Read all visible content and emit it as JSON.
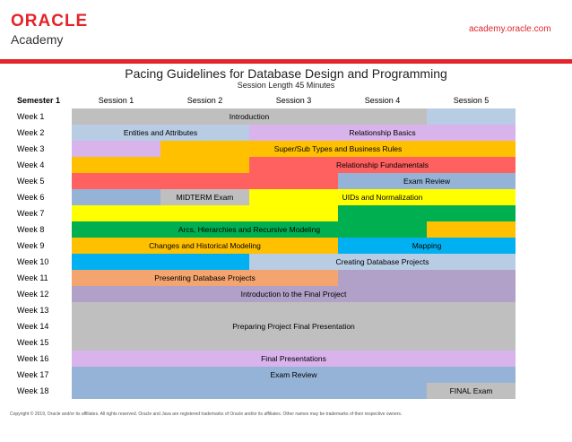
{
  "header": {
    "logo_brand": "ORACLE",
    "logo_sub": "Academy",
    "site": "academy.oracle.com",
    "accent_color": "#e3242b"
  },
  "title": "Pacing Guidelines for Database Design and Programming",
  "subtitle": "Session Length 45 Minutes",
  "semester_label": "Semester 1",
  "sessions": [
    "Session 1",
    "Session 2",
    "Session 3",
    "Session 4",
    "Session 5"
  ],
  "weeks": [
    "Week 1",
    "Week 2",
    "Week 3",
    "Week 4",
    "Week 5",
    "Week 6",
    "Week 7",
    "Week 8",
    "Week 9",
    "Week 10",
    "Week 11",
    "Week 12",
    "Week 13",
    "Week 14",
    "Week 15",
    "Week 16",
    "Week 17",
    "Week 18"
  ],
  "blocks": [
    {
      "row": 0,
      "col": 0,
      "rows": 1,
      "cols": 4,
      "color": "#bfbfbf"
    },
    {
      "row": 0,
      "col": 4,
      "rows": 1,
      "cols": 1,
      "color": "#b8cce4"
    },
    {
      "row": 1,
      "col": 0,
      "rows": 1,
      "cols": 2,
      "color": "#b8cce4"
    },
    {
      "row": 1,
      "col": 2,
      "rows": 1,
      "cols": 3,
      "color": "#d9b3ec"
    },
    {
      "row": 2,
      "col": 0,
      "rows": 1,
      "cols": 1,
      "color": "#d9b3ec"
    },
    {
      "row": 2,
      "col": 1,
      "rows": 1,
      "cols": 4,
      "color": "#ffc000"
    },
    {
      "row": 3,
      "col": 0,
      "rows": 1,
      "cols": 2,
      "color": "#ffc000"
    },
    {
      "row": 3,
      "col": 2,
      "rows": 1,
      "cols": 3,
      "color": "#ff6161"
    },
    {
      "row": 4,
      "col": 0,
      "rows": 1,
      "cols": 3,
      "color": "#ff6161"
    },
    {
      "row": 4,
      "col": 3,
      "rows": 1,
      "cols": 2,
      "color": "#95b3d7"
    },
    {
      "row": 5,
      "col": 0,
      "rows": 1,
      "cols": 1,
      "color": "#95b3d7"
    },
    {
      "row": 5,
      "col": 1,
      "rows": 1,
      "cols": 1,
      "color": "#bfbfbf"
    },
    {
      "row": 5,
      "col": 2,
      "rows": 2,
      "cols": 1,
      "color": "#ffff00"
    },
    {
      "row": 5,
      "col": 3,
      "rows": 1,
      "cols": 2,
      "color": "#ffff00"
    },
    {
      "row": 6,
      "col": 0,
      "rows": 1,
      "cols": 2,
      "color": "#ffff00"
    },
    {
      "row": 6,
      "col": 3,
      "rows": 1,
      "cols": 2,
      "color": "#00b050"
    },
    {
      "row": 7,
      "col": 0,
      "rows": 1,
      "cols": 4,
      "color": "#00b050"
    },
    {
      "row": 7,
      "col": 4,
      "rows": 1,
      "cols": 1,
      "color": "#ffc000"
    },
    {
      "row": 8,
      "col": 0,
      "rows": 1,
      "cols": 3,
      "color": "#ffc000"
    },
    {
      "row": 8,
      "col": 3,
      "rows": 1,
      "cols": 2,
      "color": "#00b0f0"
    },
    {
      "row": 9,
      "col": 0,
      "rows": 1,
      "cols": 2,
      "color": "#00b0f0"
    },
    {
      "row": 9,
      "col": 2,
      "rows": 1,
      "cols": 3,
      "color": "#b8cce4"
    },
    {
      "row": 10,
      "col": 0,
      "rows": 1,
      "cols": 3,
      "color": "#f4a46e"
    },
    {
      "row": 10,
      "col": 3,
      "rows": 1,
      "cols": 2,
      "color": "#b1a0c7"
    },
    {
      "row": 11,
      "col": 0,
      "rows": 1,
      "cols": 5,
      "color": "#b1a0c7"
    },
    {
      "row": 12,
      "col": 0,
      "rows": 3,
      "cols": 5,
      "color": "#bfbfbf"
    },
    {
      "row": 15,
      "col": 0,
      "rows": 1,
      "cols": 5,
      "color": "#d9b3ec"
    },
    {
      "row": 16,
      "col": 0,
      "rows": 1,
      "cols": 5,
      "color": "#95b3d7"
    },
    {
      "row": 17,
      "col": 0,
      "rows": 1,
      "cols": 4,
      "color": "#95b3d7"
    },
    {
      "row": 17,
      "col": 4,
      "rows": 1,
      "cols": 1,
      "color": "#bfbfbf"
    }
  ],
  "labels": [
    {
      "text": "Introduction",
      "row": 0,
      "rows": 1,
      "center_col": 2.0
    },
    {
      "text": "Entities and Attributes",
      "row": 1,
      "rows": 1,
      "center_col": 1.0
    },
    {
      "text": "Relationship Basics",
      "row": 1,
      "rows": 1,
      "center_col": 3.5
    },
    {
      "text": "Super/Sub Types and Business Rules",
      "row": 2,
      "rows": 1,
      "center_col": 3.0
    },
    {
      "text": "Relationship Fundamentals",
      "row": 3,
      "rows": 1,
      "center_col": 3.5
    },
    {
      "text": "Exam Review",
      "row": 4,
      "rows": 1,
      "center_col": 4.0
    },
    {
      "text": "MIDTERM Exam",
      "row": 5,
      "rows": 1,
      "center_col": 1.5
    },
    {
      "text": "UIDs and Normalization",
      "row": 5,
      "rows": 1,
      "center_col": 3.5
    },
    {
      "text": "Arcs, Hierarchies and Recursive Modeling",
      "row": 7,
      "rows": 1,
      "center_col": 2.0
    },
    {
      "text": "Changes and Historical Modeling",
      "row": 8,
      "rows": 1,
      "center_col": 1.5
    },
    {
      "text": "Mapping",
      "row": 8,
      "rows": 1,
      "center_col": 4.0
    },
    {
      "text": "Creating Database Projects",
      "row": 9,
      "rows": 1,
      "center_col": 3.5
    },
    {
      "text": "Presenting Database Projects",
      "row": 10,
      "rows": 1,
      "center_col": 1.5
    },
    {
      "text": "Introduction to the Final Project",
      "row": 11,
      "rows": 1,
      "center_col": 2.5
    },
    {
      "text": "Preparing Project Final Presentation",
      "row": 12,
      "rows": 3,
      "center_col": 2.5
    },
    {
      "text": "Final Presentations",
      "row": 15,
      "rows": 1,
      "center_col": 2.5
    },
    {
      "text": "Exam Review",
      "row": 16,
      "rows": 1,
      "center_col": 2.5
    },
    {
      "text": "FINAL Exam",
      "row": 17,
      "rows": 1,
      "center_col": 4.5
    }
  ],
  "footer": "Copyright © 2019, Oracle and/or its affiliates. All rights reserved. Oracle and Java are registered trademarks of Oracle and/or its affiliates. Other names may be trademarks of their respective owners."
}
